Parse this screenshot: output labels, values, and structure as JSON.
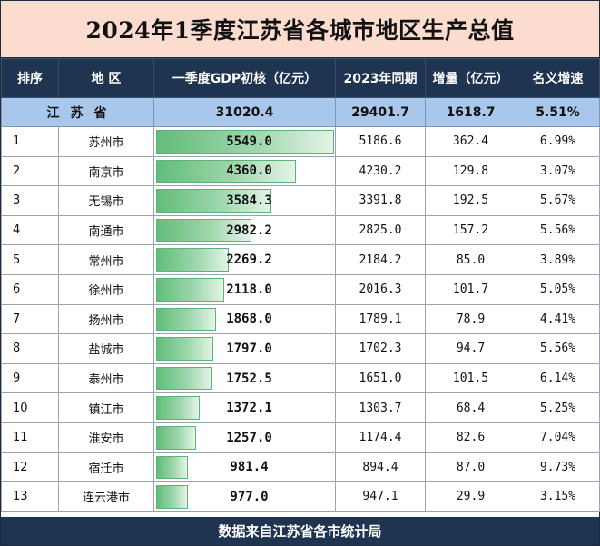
{
  "title": "2024年1季度江苏省各城市地区生产总值",
  "headers": {
    "rank": "排序",
    "region": "地 区",
    "gdp": "一季度GDP初核（亿元）",
    "prev": "2023年同期",
    "increase": "增量（亿元）",
    "growth": "名义增速"
  },
  "total": {
    "region": "江苏省",
    "gdp": "31020.4",
    "prev": "29401.7",
    "increase": "1618.7",
    "growth": "5.51%"
  },
  "rows": [
    {
      "rank": "1",
      "city": "苏州市",
      "gdp": "5549.0",
      "gdp_value": 5549.0,
      "prev": "5186.6",
      "increase": "362.4",
      "growth": "6.99%"
    },
    {
      "rank": "2",
      "city": "南京市",
      "gdp": "4360.0",
      "gdp_value": 4360.0,
      "prev": "4230.2",
      "increase": "129.8",
      "growth": "3.07%"
    },
    {
      "rank": "3",
      "city": "无锡市",
      "gdp": "3584.3",
      "gdp_value": 3584.3,
      "prev": "3391.8",
      "increase": "192.5",
      "growth": "5.67%"
    },
    {
      "rank": "4",
      "city": "南通市",
      "gdp": "2982.2",
      "gdp_value": 2982.2,
      "prev": "2825.0",
      "increase": "157.2",
      "growth": "5.56%"
    },
    {
      "rank": "5",
      "city": "常州市",
      "gdp": "2269.2",
      "gdp_value": 2269.2,
      "prev": "2184.2",
      "increase": "85.0",
      "growth": "3.89%"
    },
    {
      "rank": "6",
      "city": "徐州市",
      "gdp": "2118.0",
      "gdp_value": 2118.0,
      "prev": "2016.3",
      "increase": "101.7",
      "growth": "5.05%"
    },
    {
      "rank": "7",
      "city": "扬州市",
      "gdp": "1868.0",
      "gdp_value": 1868.0,
      "prev": "1789.1",
      "increase": "78.9",
      "growth": "4.41%"
    },
    {
      "rank": "8",
      "city": "盐城市",
      "gdp": "1797.0",
      "gdp_value": 1797.0,
      "prev": "1702.3",
      "increase": "94.7",
      "growth": "5.56%"
    },
    {
      "rank": "9",
      "city": "泰州市",
      "gdp": "1752.5",
      "gdp_value": 1752.5,
      "prev": "1651.0",
      "increase": "101.5",
      "growth": "6.14%"
    },
    {
      "rank": "10",
      "city": "镇江市",
      "gdp": "1372.1",
      "gdp_value": 1372.1,
      "prev": "1303.7",
      "increase": "68.4",
      "growth": "5.25%"
    },
    {
      "rank": "11",
      "city": "淮安市",
      "gdp": "1257.0",
      "gdp_value": 1257.0,
      "prev": "1174.4",
      "increase": "82.6",
      "growth": "7.04%"
    },
    {
      "rank": "12",
      "city": "宿迁市",
      "gdp": "981.4",
      "gdp_value": 981.4,
      "prev": "894.4",
      "increase": "87.0",
      "growth": "9.73%"
    },
    {
      "rank": "13",
      "city": "连云港市",
      "gdp": "977.0",
      "gdp_value": 977.0,
      "prev": "947.1",
      "increase": "29.9",
      "growth": "3.15%"
    }
  ],
  "colors": {
    "header_bg": "#1e3450",
    "title_bg": "#fbdccf",
    "total_bg": "#a9c7ea",
    "bar": "#62bd7b"
  },
  "footer": "数据来自江苏省各市统计局"
}
